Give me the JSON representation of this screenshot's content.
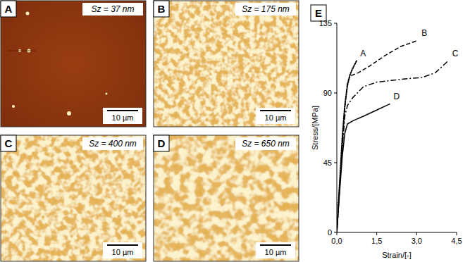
{
  "panels": [
    {
      "label": "A",
      "annotation": "Sz = 37 nm",
      "scale_bar": "10 µm"
    },
    {
      "label": "B",
      "annotation": "Sz = 175 nm",
      "scale_bar": "10 µm"
    },
    {
      "label": "C",
      "annotation": "Sz = 400 nm",
      "scale_bar": "10 µm"
    },
    {
      "label": "D",
      "annotation": "Sz = 650 nm",
      "scale_bar": "10 µm"
    }
  ],
  "chart_data": {
    "type": "line",
    "title": "E",
    "x_label": "Strain/[-]",
    "y_label": "Stress/[MPa]",
    "xlim": [
      0,
      4.5
    ],
    "ylim": [
      0,
      135
    ],
    "xticks": [
      {
        "value": 0,
        "label": "0,0"
      },
      {
        "value": 1.5,
        "label": "1,5"
      },
      {
        "value": 3,
        "label": "3,0"
      },
      {
        "value": 4.5,
        "label": "4,5"
      }
    ],
    "yticks": [
      0,
      45,
      90,
      135
    ],
    "grid": false,
    "series": [
      {
        "name": "A",
        "color": "#000000",
        "line_style": "dotted",
        "x": [
          0,
          0.1,
          0.2,
          0.3,
          0.4,
          0.5,
          0.6,
          0.75
        ],
        "values": [
          0,
          30,
          60,
          82,
          95,
          102,
          106,
          111
        ]
      },
      {
        "name": "B",
        "color": "#000000",
        "line_style": "dashed",
        "x": [
          0,
          0.1,
          0.2,
          0.3,
          0.4,
          0.5,
          0.8,
          1.2,
          1.8,
          2.4,
          3.05
        ],
        "values": [
          0,
          28,
          55,
          80,
          97,
          101,
          103,
          107,
          114,
          120,
          124
        ]
      },
      {
        "name": "C",
        "color": "#000000",
        "line_style": "dashdot",
        "x": [
          0,
          0.1,
          0.2,
          0.3,
          0.4,
          0.6,
          1.0,
          1.5,
          2.5,
          3.2,
          3.7,
          4.2
        ],
        "values": [
          0,
          27,
          53,
          75,
          82,
          87,
          94,
          97,
          99,
          100,
          103,
          111
        ]
      },
      {
        "name": "D",
        "color": "#000000",
        "line_style": "solid",
        "x": [
          0,
          0.1,
          0.2,
          0.3,
          0.4,
          0.6,
          1.0,
          1.5,
          2.0
        ],
        "values": [
          0,
          25,
          48,
          64,
          70,
          72,
          75,
          79,
          83
        ]
      }
    ]
  }
}
